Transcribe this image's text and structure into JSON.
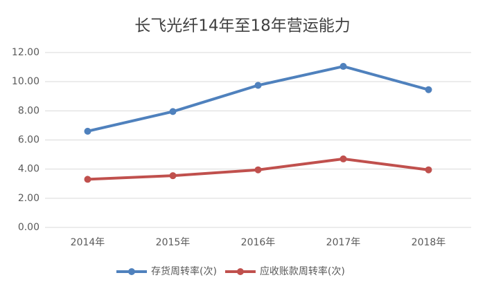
{
  "chart_data": {
    "type": "line",
    "title": "长飞光纤14年至18年营运能力",
    "categories": [
      "2014年",
      "2015年",
      "2016年",
      "2017年",
      "2018年"
    ],
    "series": [
      {
        "name": "存货周转率(次)",
        "color": "#4f81bd",
        "values": [
          6.6,
          7.95,
          9.75,
          11.05,
          9.45
        ]
      },
      {
        "name": "应收账款周转率(次)",
        "color": "#c0504d",
        "values": [
          3.3,
          3.55,
          3.95,
          4.7,
          3.95
        ]
      }
    ],
    "ylim": [
      0,
      12
    ],
    "yticks": [
      {
        "value": 0,
        "label": "0.00"
      },
      {
        "value": 2,
        "label": "2.00"
      },
      {
        "value": 4,
        "label": "4.00"
      },
      {
        "value": 6,
        "label": "6.00"
      },
      {
        "value": 8,
        "label": "8.00"
      },
      {
        "value": 10,
        "label": "10.00"
      },
      {
        "value": 12,
        "label": "12.00"
      }
    ],
    "grid": true,
    "legend": "bottom"
  }
}
